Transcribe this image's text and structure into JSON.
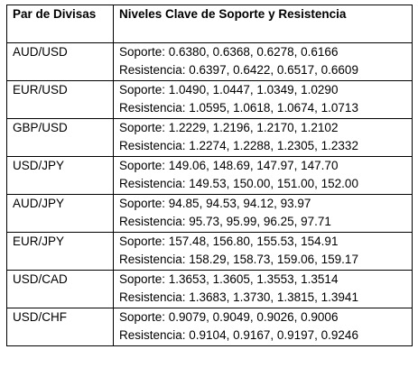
{
  "table": {
    "headers": [
      "Par de Divisas",
      "Niveles Clave de Soporte y Resistencia"
    ],
    "rows": [
      {
        "pair": "AUD/USD",
        "support": "Soporte: 0.6380, 0.6368, 0.6278, 0.6166",
        "resistance": "Resistencia: 0.6397, 0.6422, 0.6517, 0.6609"
      },
      {
        "pair": "EUR/USD",
        "support": "Soporte: 1.0490, 1.0447, 1.0349, 1.0290",
        "resistance": "Resistencia: 1.0595, 1.0618, 1.0674, 1.0713"
      },
      {
        "pair": "GBP/USD",
        "support": "Soporte: 1.2229, 1.2196, 1.2170, 1.2102",
        "resistance": "Resistencia: 1.2274, 1.2288, 1.2305, 1.2332"
      },
      {
        "pair": "USD/JPY",
        "support": "Soporte: 149.06, 148.69, 147.97, 147.70",
        "resistance": "Resistencia: 149.53, 150.00, 151.00, 152.00"
      },
      {
        "pair": "AUD/JPY",
        "support": "Soporte: 94.85, 94.53, 94.12, 93.97",
        "resistance": "Resistencia: 95.73, 95.99, 96.25, 97.71"
      },
      {
        "pair": "EUR/JPY",
        "support": "Soporte: 157.48, 156.80, 155.53, 154.91",
        "resistance": "Resistencia: 158.29, 158.73, 159.06, 159.17"
      },
      {
        "pair": "USD/CAD",
        "support": "Soporte: 1.3653, 1.3605, 1.3553, 1.3514",
        "resistance": "Resistencia: 1.3683, 1.3730, 1.3815, 1.3941"
      },
      {
        "pair": "USD/CHF",
        "support": "Soporte: 0.9079, 0.9049, 0.9026, 0.9006",
        "resistance": "Resistencia: 0.9104, 0.9167, 0.9197, 0.9246"
      }
    ]
  }
}
